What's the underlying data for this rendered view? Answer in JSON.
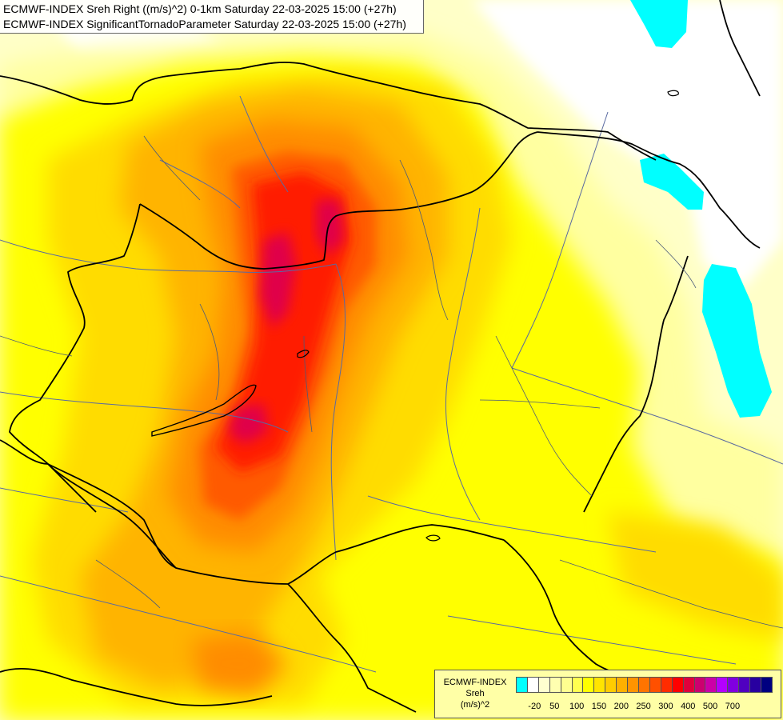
{
  "header": {
    "line1": "ECMWF-INDEX Sreh Right ((m/s)^2) 0-1km Saturday 22-03-2025 15:00 (+27h)",
    "line2": "ECMWF-INDEX SignificantTornadoParameter Saturday 22-03-2025 15:00 (+27h)"
  },
  "legend": {
    "title1": "ECMWF-INDEX",
    "title2": "Sreh",
    "title3": "(m/s)^2",
    "colors": [
      "#00ffff",
      "#ffffff",
      "#ffffd0",
      "#ffffb0",
      "#ffff90",
      "#ffff50",
      "#ffff00",
      "#ffe400",
      "#ffcc00",
      "#ffb000",
      "#ff9400",
      "#ff7400",
      "#ff5000",
      "#ff2c00",
      "#ff0000",
      "#e0003c",
      "#cc0070",
      "#cc00a8",
      "#b400ff",
      "#8000e0",
      "#5000c0",
      "#2800a0",
      "#000080"
    ],
    "ticks": [
      "-20",
      "50",
      "100",
      "150",
      "200",
      "250",
      "300",
      "400",
      "500",
      "700"
    ]
  },
  "map_colors": {
    "ocean_light": "#ffffc8",
    "level1": "#ffffa0",
    "level2": "#ffff00",
    "level3": "#ffdc00",
    "level4": "#ffb400",
    "level5": "#ff8c00",
    "level6": "#ff5a00",
    "level7": "#ff1e00",
    "level8": "#e0004a",
    "negative": "#00ffff",
    "border": "#000000",
    "river": "#5a6aa0"
  }
}
